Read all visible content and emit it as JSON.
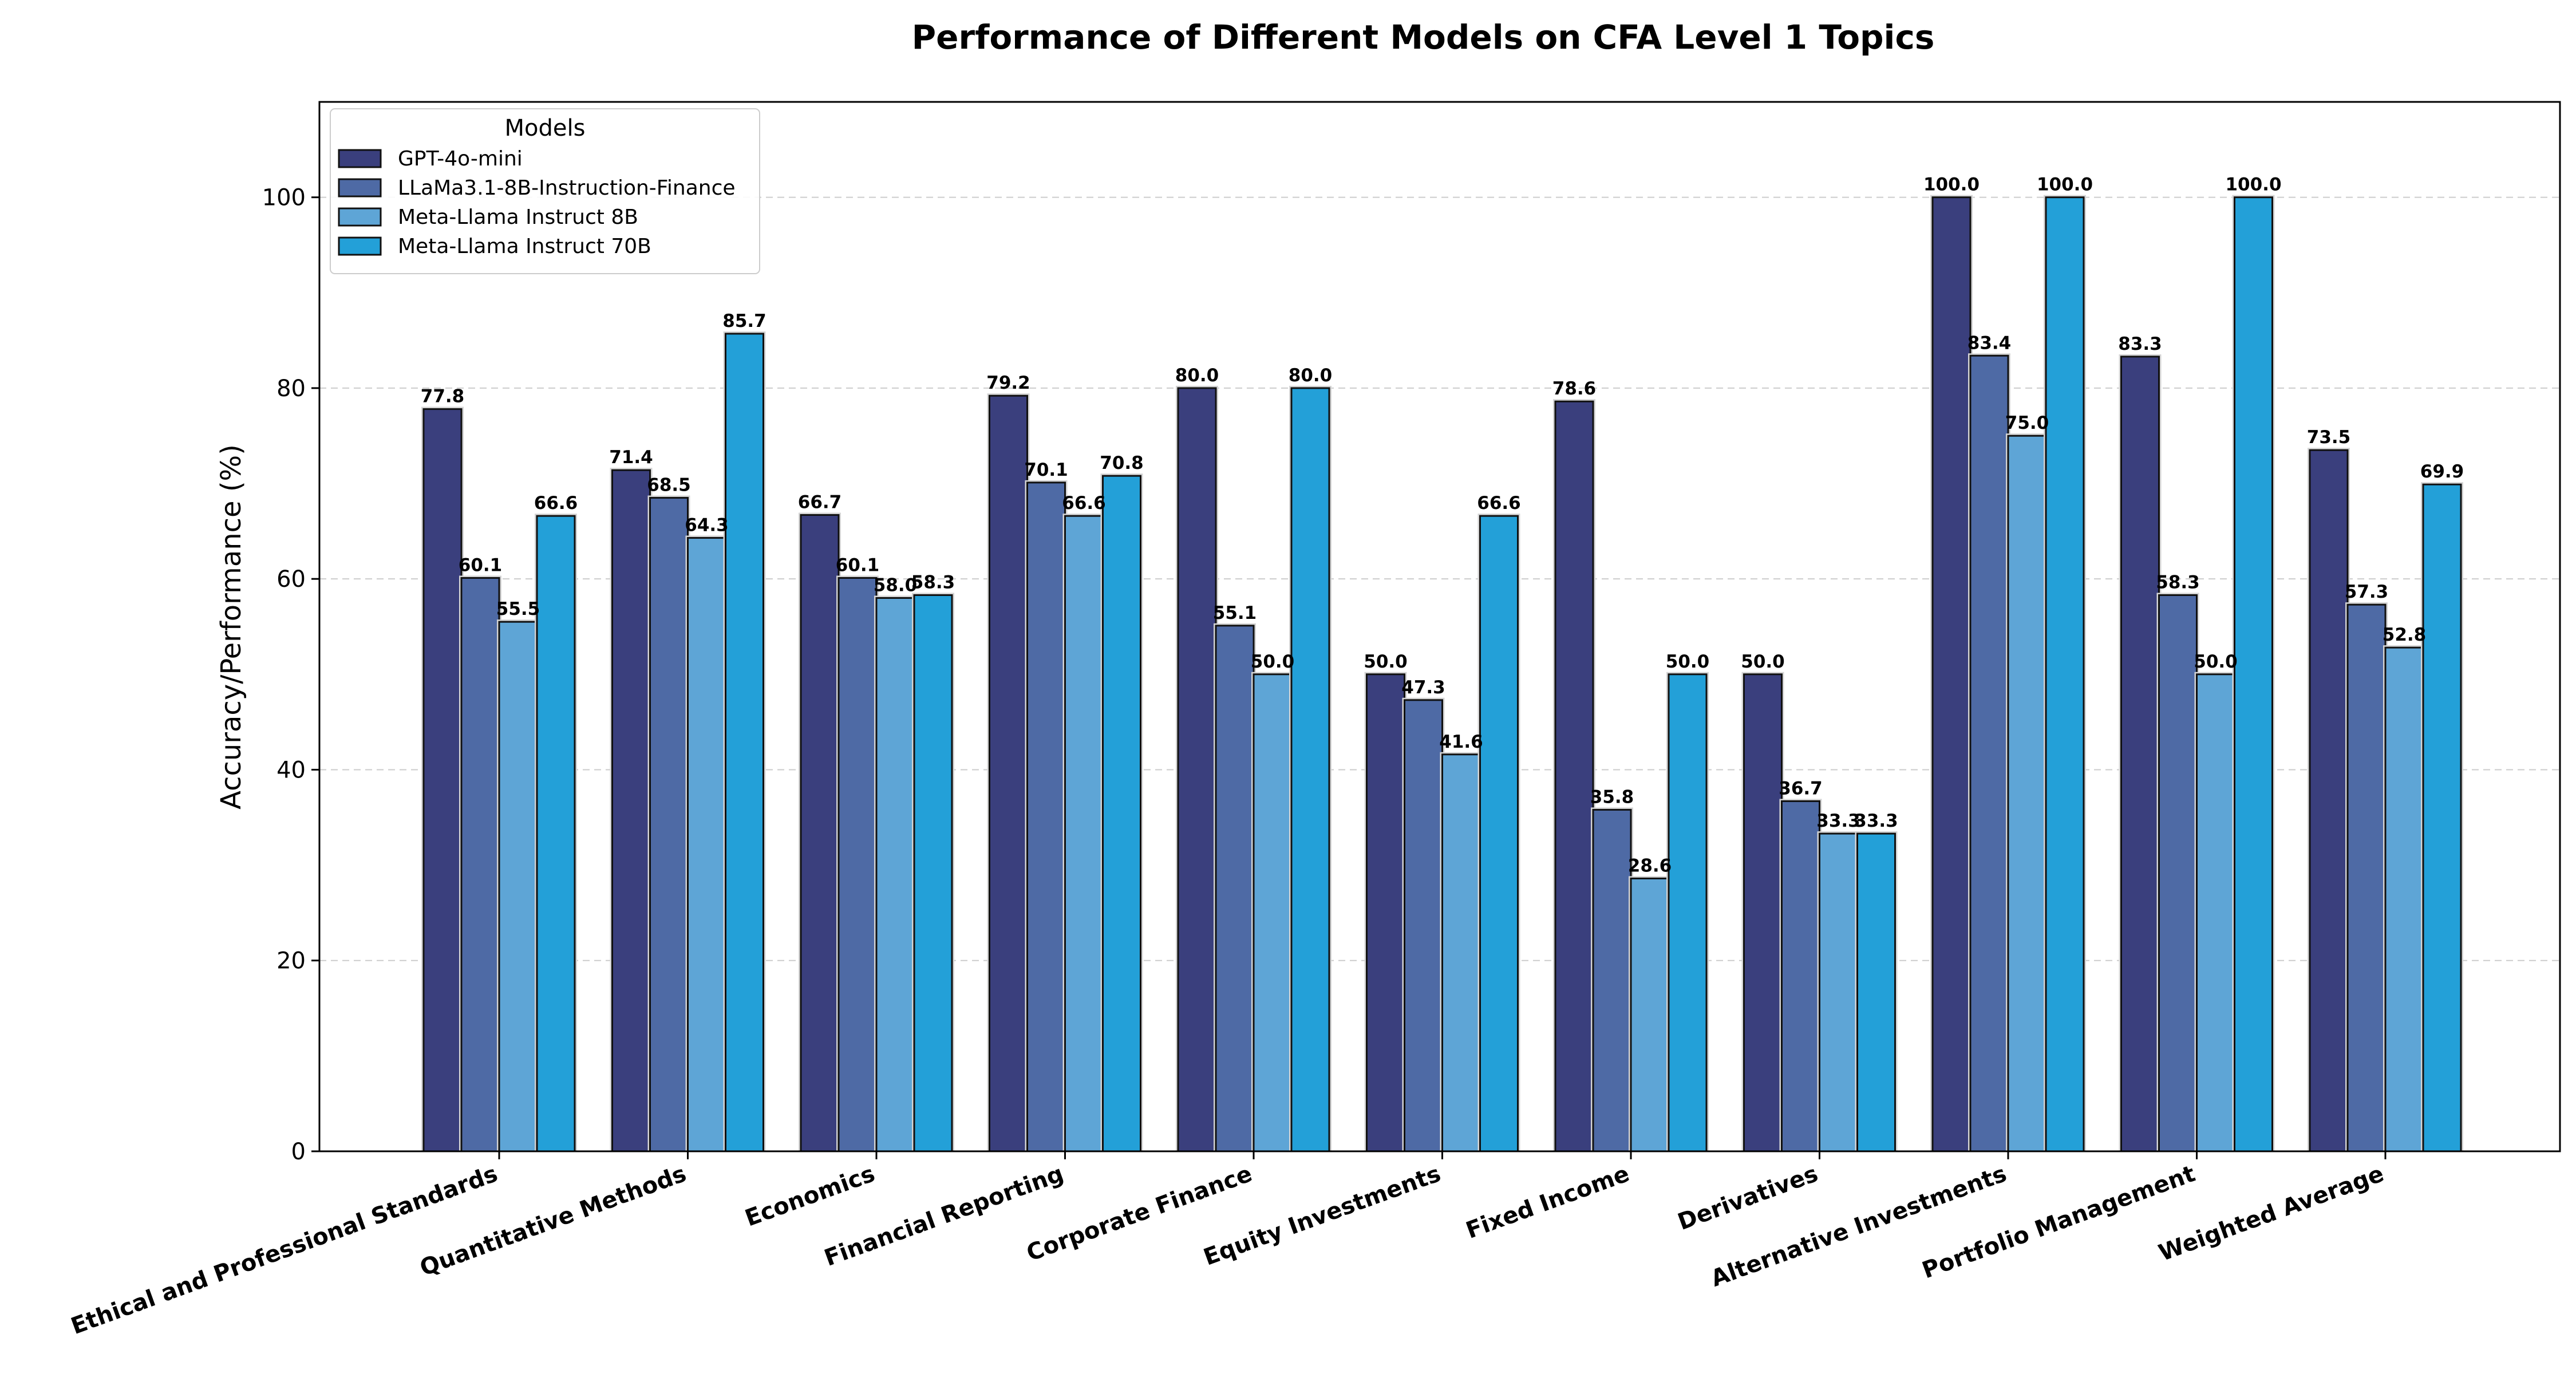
{
  "chart_data": {
    "type": "bar",
    "title": "Performance of Different Models on CFA Level 1 Topics",
    "xlabel": "",
    "ylabel": "Accuracy/Performance (%)",
    "ylim": [
      0,
      110
    ],
    "yticks": [
      0,
      20,
      40,
      60,
      80,
      100
    ],
    "grid": "y-dashed",
    "legend": {
      "title": "Models",
      "placement": "top-left"
    },
    "categories": [
      "Ethical and Professional Standards",
      "Quantitative Methods",
      "Economics",
      "Financial Reporting",
      "Corporate Finance",
      "Equity Investments",
      "Fixed Income",
      "Derivatives",
      "Alternative Investments",
      "Portfolio Management",
      "Weighted Average"
    ],
    "series": [
      {
        "name": "GPT-4o-mini",
        "color": "#3a3f7d",
        "values": [
          77.8,
          71.4,
          66.7,
          79.2,
          80.0,
          50.0,
          78.6,
          50.0,
          100.0,
          83.3,
          73.5
        ]
      },
      {
        "name": "LLaMa3.1-8B-Instruction-Finance",
        "color": "#4e6aa5",
        "values": [
          60.1,
          68.5,
          60.1,
          70.1,
          55.1,
          47.3,
          35.8,
          36.7,
          83.4,
          58.3,
          57.3
        ]
      },
      {
        "name": "Meta-Llama Instruct 8B",
        "color": "#5ea5d6",
        "values": [
          55.5,
          64.3,
          58.0,
          66.6,
          50.0,
          41.6,
          28.6,
          33.3,
          75.0,
          50.0,
          52.8
        ]
      },
      {
        "name": "Meta-Llama Instruct 70B",
        "color": "#23a0d8",
        "values": [
          66.6,
          85.7,
          58.3,
          70.8,
          80.0,
          66.6,
          50.0,
          33.3,
          100.0,
          100.0,
          69.9
        ]
      }
    ]
  }
}
